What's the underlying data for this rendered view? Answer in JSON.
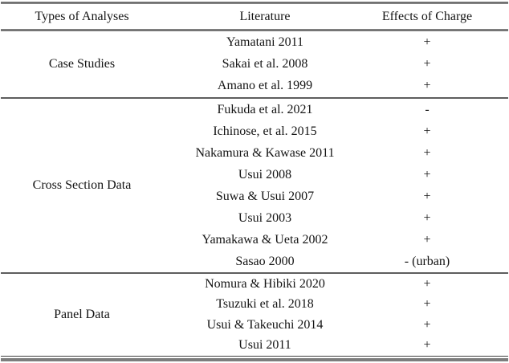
{
  "table": {
    "columns": [
      "Types of Analyses",
      "Literature",
      "Effects of Charge"
    ],
    "sections": [
      {
        "type": "Case Studies",
        "rows": [
          {
            "literature": "Yamatani 2011",
            "effect": "+"
          },
          {
            "literature": "Sakai et al. 2008",
            "effect": "+"
          },
          {
            "literature": "Amano et al. 1999",
            "effect": "+"
          }
        ]
      },
      {
        "type": "Cross Section Data",
        "rows": [
          {
            "literature": "Fukuda et al. 2021",
            "effect": "-"
          },
          {
            "literature": "Ichinose, et al. 2015",
            "effect": "+"
          },
          {
            "literature": "Nakamura & Kawase 2011",
            "effect": "+"
          },
          {
            "literature": "Usui 2008",
            "effect": "+"
          },
          {
            "literature": "Suwa & Usui 2007",
            "effect": "+"
          },
          {
            "literature": "Usui 2003",
            "effect": "+"
          },
          {
            "literature": "Yamakawa & Ueta 2002",
            "effect": "+"
          },
          {
            "literature": "Sasao 2000",
            "effect": "- (urban)"
          }
        ]
      },
      {
        "type": "Panel Data",
        "rows": [
          {
            "literature": "Nomura & Hibiki 2020",
            "effect": "+"
          },
          {
            "literature": "Tsuzuki et al. 2018",
            "effect": "+"
          },
          {
            "literature": "Usui & Takeuchi 2014",
            "effect": "+"
          },
          {
            "literature": "Usui 2011",
            "effect": "+"
          }
        ]
      }
    ]
  }
}
